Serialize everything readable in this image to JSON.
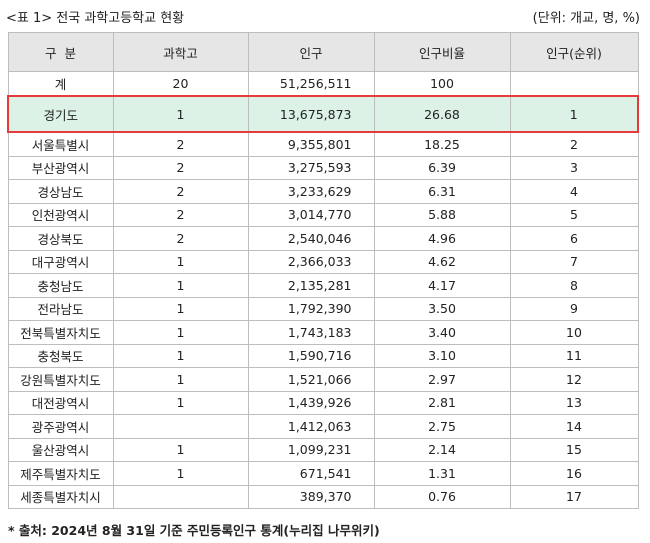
{
  "caption": {
    "title": "<표 1> 전국 과학고등학교 현황",
    "unit": "(단위: 개교, 명, %)"
  },
  "headers": [
    "구  분",
    "과학고",
    "인구",
    "인구비율",
    "인구(순위)"
  ],
  "total": {
    "region": "계",
    "schools": "20",
    "population": "51,256,511",
    "ratio": "100",
    "rank": ""
  },
  "highlight": {
    "region": "경기도",
    "schools": "1",
    "population": "13,675,873",
    "ratio": "26.68",
    "rank": "1"
  },
  "rows": [
    {
      "region": "서울특별시",
      "schools": "2",
      "population": "9,355,801",
      "ratio": "18.25",
      "rank": "2"
    },
    {
      "region": "부산광역시",
      "schools": "2",
      "population": "3,275,593",
      "ratio": "6.39",
      "rank": "3"
    },
    {
      "region": "경상남도",
      "schools": "2",
      "population": "3,233,629",
      "ratio": "6.31",
      "rank": "4"
    },
    {
      "region": "인천광역시",
      "schools": "2",
      "population": "3,014,770",
      "ratio": "5.88",
      "rank": "5"
    },
    {
      "region": "경상북도",
      "schools": "2",
      "population": "2,540,046",
      "ratio": "4.96",
      "rank": "6"
    },
    {
      "region": "대구광역시",
      "schools": "1",
      "population": "2,366,033",
      "ratio": "4.62",
      "rank": "7"
    },
    {
      "region": "충청남도",
      "schools": "1",
      "population": "2,135,281",
      "ratio": "4.17",
      "rank": "8"
    },
    {
      "region": "전라남도",
      "schools": "1",
      "population": "1,792,390",
      "ratio": "3.50",
      "rank": "9"
    },
    {
      "region": "전북특별자치도",
      "schools": "1",
      "population": "1,743,183",
      "ratio": "3.40",
      "rank": "10"
    },
    {
      "region": "충청북도",
      "schools": "1",
      "population": "1,590,716",
      "ratio": "3.10",
      "rank": "11"
    },
    {
      "region": "강원특별자치도",
      "schools": "1",
      "population": "1,521,066",
      "ratio": "2.97",
      "rank": "12"
    },
    {
      "region": "대전광역시",
      "schools": "1",
      "population": "1,439,926",
      "ratio": "2.81",
      "rank": "13"
    },
    {
      "region": "광주광역시",
      "schools": "",
      "population": "1,412,063",
      "ratio": "2.75",
      "rank": "14"
    },
    {
      "region": "울산광역시",
      "schools": "1",
      "population": "1,099,231",
      "ratio": "2.14",
      "rank": "15"
    },
    {
      "region": "제주특별자치도",
      "schools": "1",
      "population": "671,541",
      "ratio": "1.31",
      "rank": "16"
    },
    {
      "region": "세종특별자치시",
      "schools": "",
      "population": "389,370",
      "ratio": "0.76",
      "rank": "17"
    }
  ],
  "footnote": "* 출처: 2024년 8월 31일 기준 주민등록인구 통계(누리집 나무위키)",
  "colors": {
    "highlight_fill": "#dcf2e6",
    "highlight_border": "#e53b3b",
    "header_fill": "#e6e6e6"
  }
}
